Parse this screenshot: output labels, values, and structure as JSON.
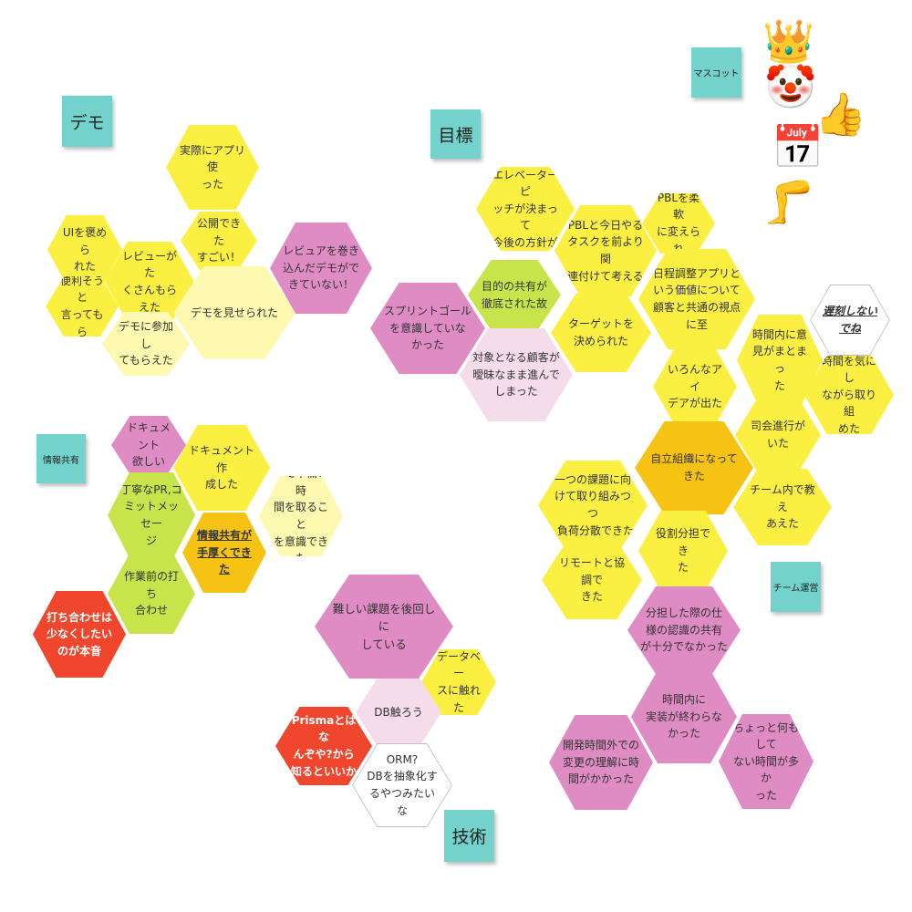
{
  "colors": {
    "yellow": "#fbf041",
    "light_yellow": "#fdf9b0",
    "amber": "#f6c315",
    "pink": "#de8cc3",
    "light_pink": "#f4dcea",
    "lime": "#c9e34a",
    "red": "#f0462d",
    "sticky_teal": "#73d2cb"
  },
  "stickies": [
    {
      "label": "デモ"
    },
    {
      "label": "目標"
    },
    {
      "label": "マスコット"
    },
    {
      "label": "情報共有"
    },
    {
      "label": "技術"
    },
    {
      "label": "チーム運営"
    }
  ],
  "mascot_icons": [
    {
      "icon": "crown-icon",
      "glyph": "👑"
    },
    {
      "icon": "clown-face-icon",
      "glyph": "🤡"
    },
    {
      "icon": "thumbs-up-icon",
      "glyph": "👍"
    },
    {
      "icon": "calendar-icon",
      "glyph": "📅"
    },
    {
      "icon": "legs-icon",
      "glyph": "🦵"
    }
  ],
  "hexes": [
    {
      "text": "実際にアプリ使\nった",
      "color": "yellow"
    },
    {
      "text": "UIを褒めら\nれた",
      "color": "yellow"
    },
    {
      "text": "公開できた\nすごい！",
      "color": "yellow"
    },
    {
      "text": "レビュアを巻き\n込んだデモがで\nきていない！",
      "color": "pink"
    },
    {
      "text": "レビューがた\nくさんもらえた",
      "color": "yellow"
    },
    {
      "text": "便利そうと\n言ってもら",
      "color": "yellow"
    },
    {
      "text": "デモを見せられた",
      "color": "light_yellow"
    },
    {
      "text": "デモに参加し\nてもらえた",
      "color": "light_yellow"
    },
    {
      "text": "エレベーターピ\nッチが決まって\n今後の方針が",
      "color": "yellow"
    },
    {
      "text": "PBLを柔軟\nに変えられ",
      "color": "yellow"
    },
    {
      "text": "PBLと今日やる\nタスクを前より関\n連付けて考える",
      "color": "yellow"
    },
    {
      "text": "目的の共有が\n徹底された故",
      "color": "lime"
    },
    {
      "text": "日程調整アプリと\nいう価値について\n顧客と共通の視点\nに至",
      "color": "yellow"
    },
    {
      "text": "スプリントゴール\nを意識していな\nかった",
      "color": "pink"
    },
    {
      "text": "ターゲットを\n決められた",
      "color": "yellow"
    },
    {
      "text": "遅刻しない\nでね",
      "color": "white"
    },
    {
      "text": "対象となる顧客が\n曖昧なまま進んで\nしまった",
      "color": "light_pink"
    },
    {
      "text": "時間内に意\n見がまとまっ\nた",
      "color": "yellow"
    },
    {
      "text": "いろんなアイ\nデアが出た",
      "color": "yellow"
    },
    {
      "text": "時間を気にし\nながら取り組\nめた",
      "color": "yellow"
    },
    {
      "text": "ドキュメント\n欲しい",
      "color": "pink"
    },
    {
      "text": "ドキュメント作\n成した",
      "color": "yellow"
    },
    {
      "text": "丁寧なPR,コ\nミットメッセー\nジ",
      "color": "lime"
    },
    {
      "text": "デモ準備の時\n間を取ること\nを意識できた",
      "color": "light_yellow"
    },
    {
      "text": "情報共有が\n手厚くできた",
      "color": "amber"
    },
    {
      "text": "作業前の打ち\n合わせ",
      "color": "lime"
    },
    {
      "text": "打ち合わせは\n少なくしたい\nのが本音",
      "color": "red"
    },
    {
      "text": "司会進行が\nいた",
      "color": "yellow"
    },
    {
      "text": "自立組織になって\nきた",
      "color": "amber"
    },
    {
      "text": "一つの課題に向\nけて取り組みつつ\n､負荷分散できた",
      "color": "yellow"
    },
    {
      "text": "チーム内で教え\nあえた",
      "color": "yellow"
    },
    {
      "text": "役割分担でき\nた",
      "color": "yellow"
    },
    {
      "text": "リモートと協調で\nきた",
      "color": "yellow"
    },
    {
      "text": "分担した際の仕\n様の認識の共有\nが十分でなかった",
      "color": "pink"
    },
    {
      "text": "時間内に\n実装が終わらな\nかった",
      "color": "pink"
    },
    {
      "text": "開発時間外での\n変更の理解に時\n間がかかった",
      "color": "pink"
    },
    {
      "text": "ちょっと何もして\nない時間が多か\nった",
      "color": "pink"
    },
    {
      "text": "難しい課題を後回しに\nしている",
      "color": "pink"
    },
    {
      "text": "データベー\nスに触れた",
      "color": "yellow"
    },
    {
      "text": "DB触ろう",
      "color": "light_pink"
    },
    {
      "text": "Prismaとはな\nんぞや?から\n知るといいか",
      "color": "red"
    },
    {
      "text": "ORM?\nDBを抽象化す\nるやつみたいな",
      "color": "white"
    }
  ]
}
